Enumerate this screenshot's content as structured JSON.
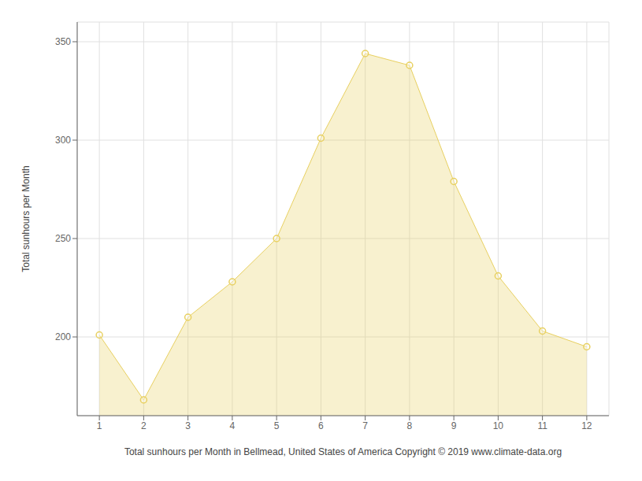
{
  "chart_data": {
    "type": "area",
    "x": [
      1,
      2,
      3,
      4,
      5,
      6,
      7,
      8,
      9,
      10,
      11,
      12
    ],
    "values": [
      201,
      168,
      210,
      228,
      250,
      301,
      344,
      338,
      279,
      231,
      203,
      195
    ],
    "color": "#E8D060",
    "marker": "o",
    "xlabel": "Total sunhours per Month in Bellmead, United States of America Copyright © 2019 www.climate-data.org",
    "ylabel": "Total sunhours per Month",
    "xlim": [
      0.5,
      12.5
    ],
    "xticks": [
      1,
      2,
      3,
      4,
      5,
      6,
      7,
      8,
      9,
      10,
      11,
      12
    ],
    "ylim": [
      160,
      360
    ],
    "yticks": [
      200,
      250,
      300,
      350
    ],
    "grid": true
  }
}
